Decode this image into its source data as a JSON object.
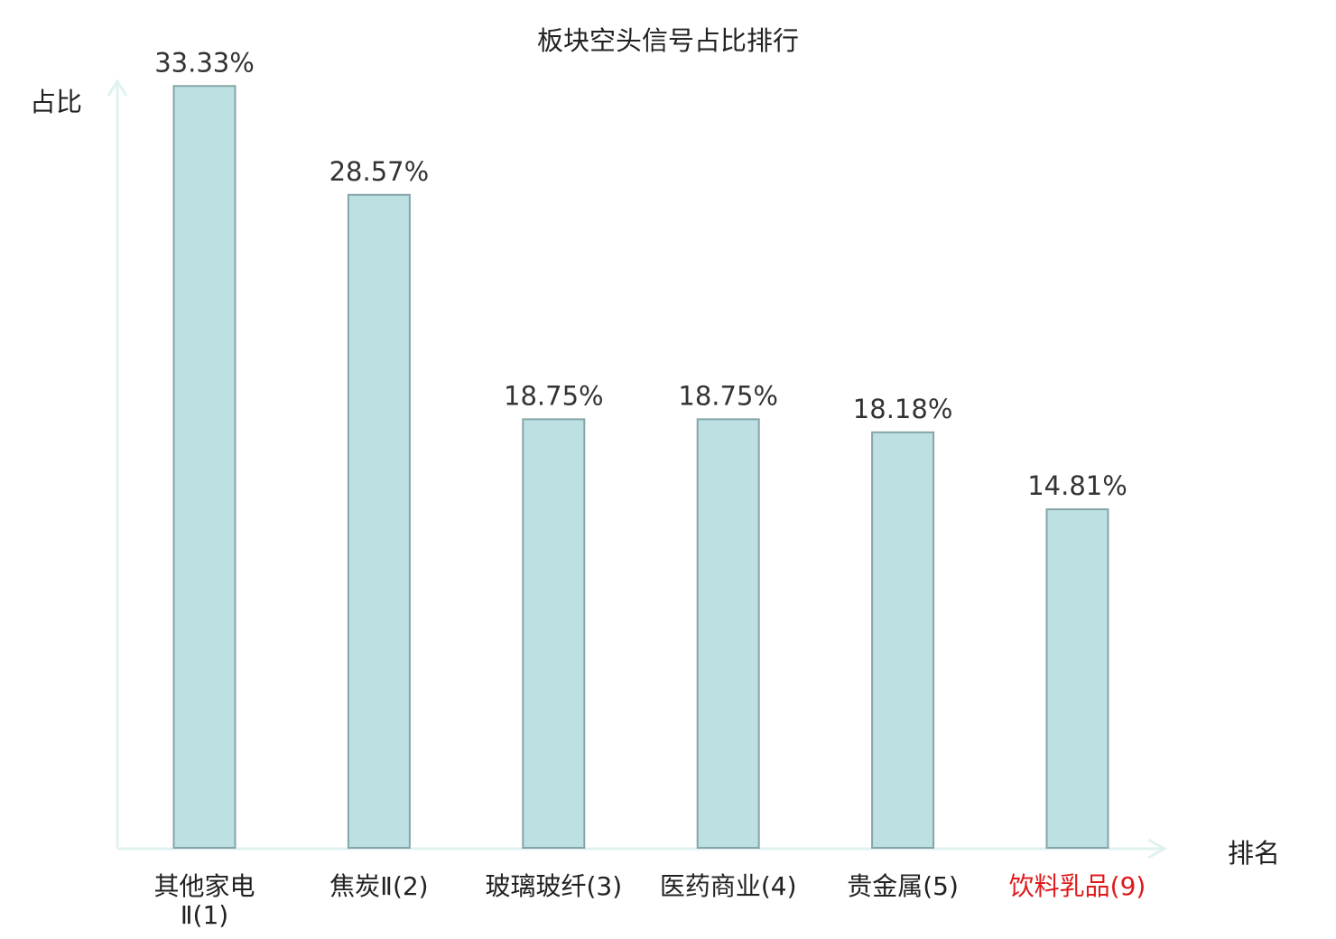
{
  "chart_data": {
    "type": "bar",
    "title": "板块空头信号占比排行",
    "ylabel": "占比",
    "xlabel": "排名",
    "ylim": [
      0,
      35
    ],
    "grid": false,
    "categories": [
      [
        "其他家电",
        "Ⅱ(1)"
      ],
      [
        "焦炭Ⅱ(2)"
      ],
      [
        "玻璃玻纤(3)"
      ],
      [
        "医药商业(4)"
      ],
      [
        "贵金属(5)"
      ],
      [
        "饮料乳品(9)"
      ]
    ],
    "values": [
      33.33,
      28.57,
      18.75,
      18.75,
      18.18,
      14.81
    ],
    "value_labels": [
      "33.33%",
      "28.57%",
      "18.75%",
      "18.75%",
      "18.18%",
      "14.81%"
    ],
    "highlight_index": 5,
    "colors": {
      "bar_fill": "#bde0e3",
      "bar_stroke": "#85a5a8",
      "axis": "#e0f2f0",
      "highlight_text": "#e0191b"
    }
  }
}
